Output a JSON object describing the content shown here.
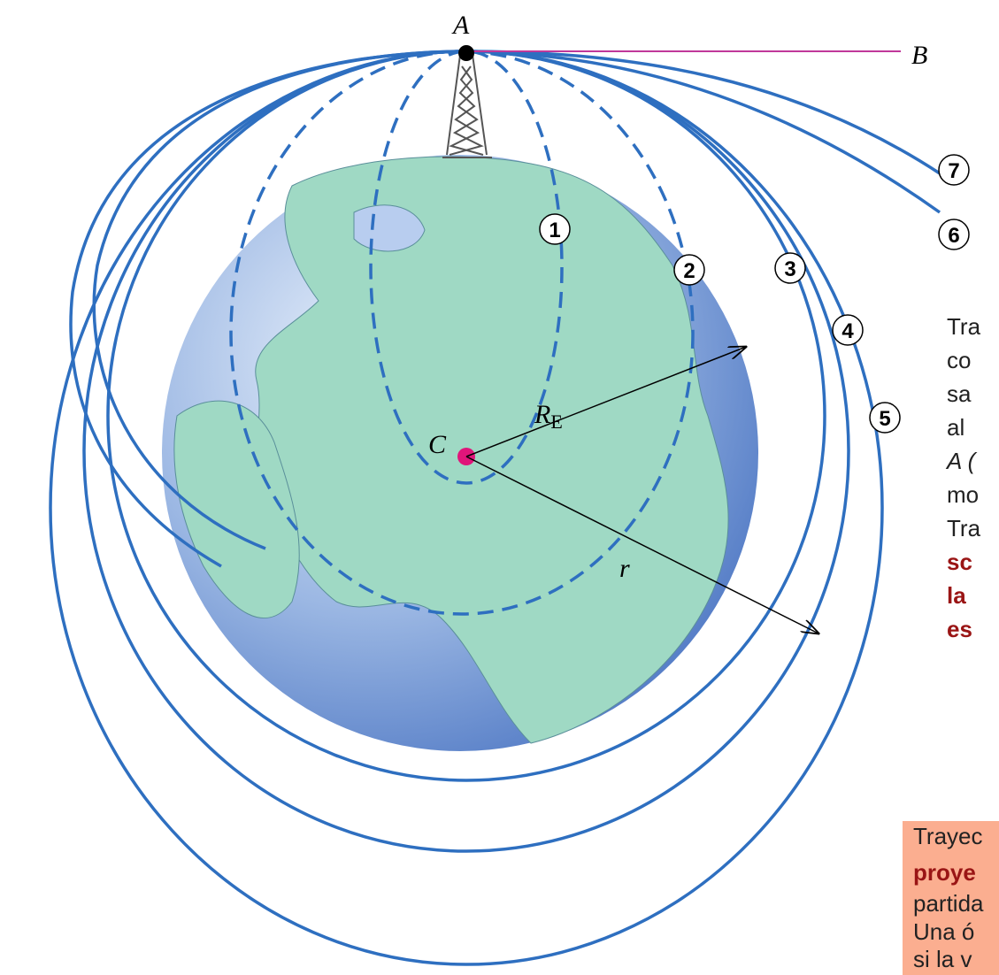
{
  "points": {
    "a": "A",
    "b": "B",
    "c": "C",
    "radius_symbol": "R",
    "radius_subscript": "E",
    "distance": "r"
  },
  "orbits": [
    "1",
    "2",
    "3",
    "4",
    "5",
    "6",
    "7"
  ],
  "side_text": [
    "Tra",
    "co",
    "sa",
    "al",
    "A (",
    "mo",
    "Tra",
    "sc",
    "la",
    "es"
  ],
  "box_text": [
    "Trayec",
    "proye",
    "partida",
    "Una ó",
    "si la v"
  ]
}
